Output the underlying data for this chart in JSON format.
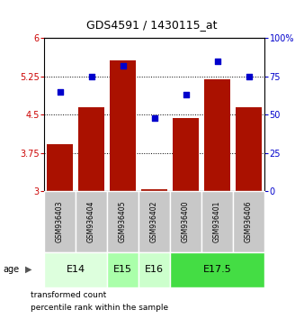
{
  "title": "GDS4591 / 1430115_at",
  "samples": [
    "GSM936403",
    "GSM936404",
    "GSM936405",
    "GSM936402",
    "GSM936400",
    "GSM936401",
    "GSM936406"
  ],
  "transformed_counts": [
    3.92,
    4.65,
    5.57,
    3.05,
    4.43,
    5.2,
    4.65
  ],
  "percentile_ranks": [
    65,
    75,
    82,
    48,
    63,
    85,
    75
  ],
  "bar_bottom": 3.0,
  "ylim_left": [
    3.0,
    6.0
  ],
  "ylim_right": [
    0,
    100
  ],
  "yticks_left": [
    3.0,
    3.75,
    4.5,
    5.25,
    6.0
  ],
  "ytick_labels_left": [
    "3",
    "3.75",
    "4.5",
    "5.25",
    "6"
  ],
  "yticks_right": [
    0,
    25,
    50,
    75,
    100
  ],
  "ytick_labels_right": [
    "0",
    "25",
    "50",
    "75",
    "100%"
  ],
  "bar_color": "#aa1100",
  "dot_color": "#0000cc",
  "groups": [
    {
      "label": "E14",
      "samples": [
        "GSM936403",
        "GSM936404"
      ],
      "color": "#ddffdd"
    },
    {
      "label": "E15",
      "samples": [
        "GSM936405"
      ],
      "color": "#aaffaa"
    },
    {
      "label": "E16",
      "samples": [
        "GSM936402"
      ],
      "color": "#ccffcc"
    },
    {
      "label": "E17.5",
      "samples": [
        "GSM936400",
        "GSM936401",
        "GSM936406"
      ],
      "color": "#44dd44"
    }
  ],
  "bar_width": 0.85,
  "sample_box_color": "#c8c8c8",
  "label_color_left": "#cc0000",
  "label_color_right": "#0000cc",
  "legend_red_label": "transformed count",
  "legend_blue_label": "percentile rank within the sample",
  "age_label": "age",
  "title_fontsize": 9,
  "tick_fontsize": 7,
  "sample_fontsize": 5.5,
  "group_fontsize": 8
}
